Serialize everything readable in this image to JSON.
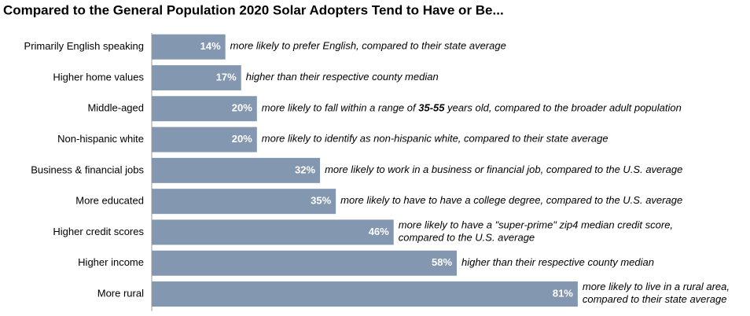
{
  "chart_data": {
    "type": "bar",
    "orientation": "horizontal",
    "title": "Compared to the General Population 2020 Solar Adopters Tend to Have or Be...",
    "categories": [
      "Primarily English speaking",
      "Higher home values",
      "Middle-aged",
      "Non-hispanic white",
      "Business & financial jobs",
      "More educated",
      "Higher credit scores",
      "Higher income",
      "More rural"
    ],
    "values": [
      14,
      17,
      20,
      20,
      32,
      35,
      46,
      58,
      81
    ],
    "value_labels": [
      "14%",
      "17%",
      "20%",
      "20%",
      "32%",
      "35%",
      "46%",
      "58%",
      "81%"
    ],
    "color": "#8497b0",
    "xlim": [
      0,
      100
    ],
    "annotations": [
      [
        [
          {
            "text": "more likely to prefer English, compared to their state average"
          }
        ]
      ],
      [
        [
          {
            "text": "higher than their respective county median"
          }
        ]
      ],
      [
        [
          {
            "text": "more likely to fall within a range of "
          },
          {
            "text": "35-55",
            "bold": true
          },
          {
            "text": " years old, compared to the broader adult population"
          }
        ]
      ],
      [
        [
          {
            "text": "more likely to identify as non-hispanic white, compared to their state average"
          }
        ]
      ],
      [
        [
          {
            "text": "more likely to work in a business or financial job, compared to the U.S. average"
          }
        ]
      ],
      [
        [
          {
            "text": "more likely to have to have a college degree, compared to the U.S. average"
          }
        ]
      ],
      [
        [
          {
            "text": "more likely to have a \"super-prime\" zip4 median credit score,"
          }
        ],
        [
          {
            "text": "compared to the U.S. average"
          }
        ]
      ],
      [
        [
          {
            "text": "higher than their respective county median"
          }
        ]
      ],
      [
        [
          {
            "text": "more likely to live in a rural area,"
          }
        ],
        [
          {
            "text": "compared to their state average"
          }
        ]
      ]
    ]
  }
}
